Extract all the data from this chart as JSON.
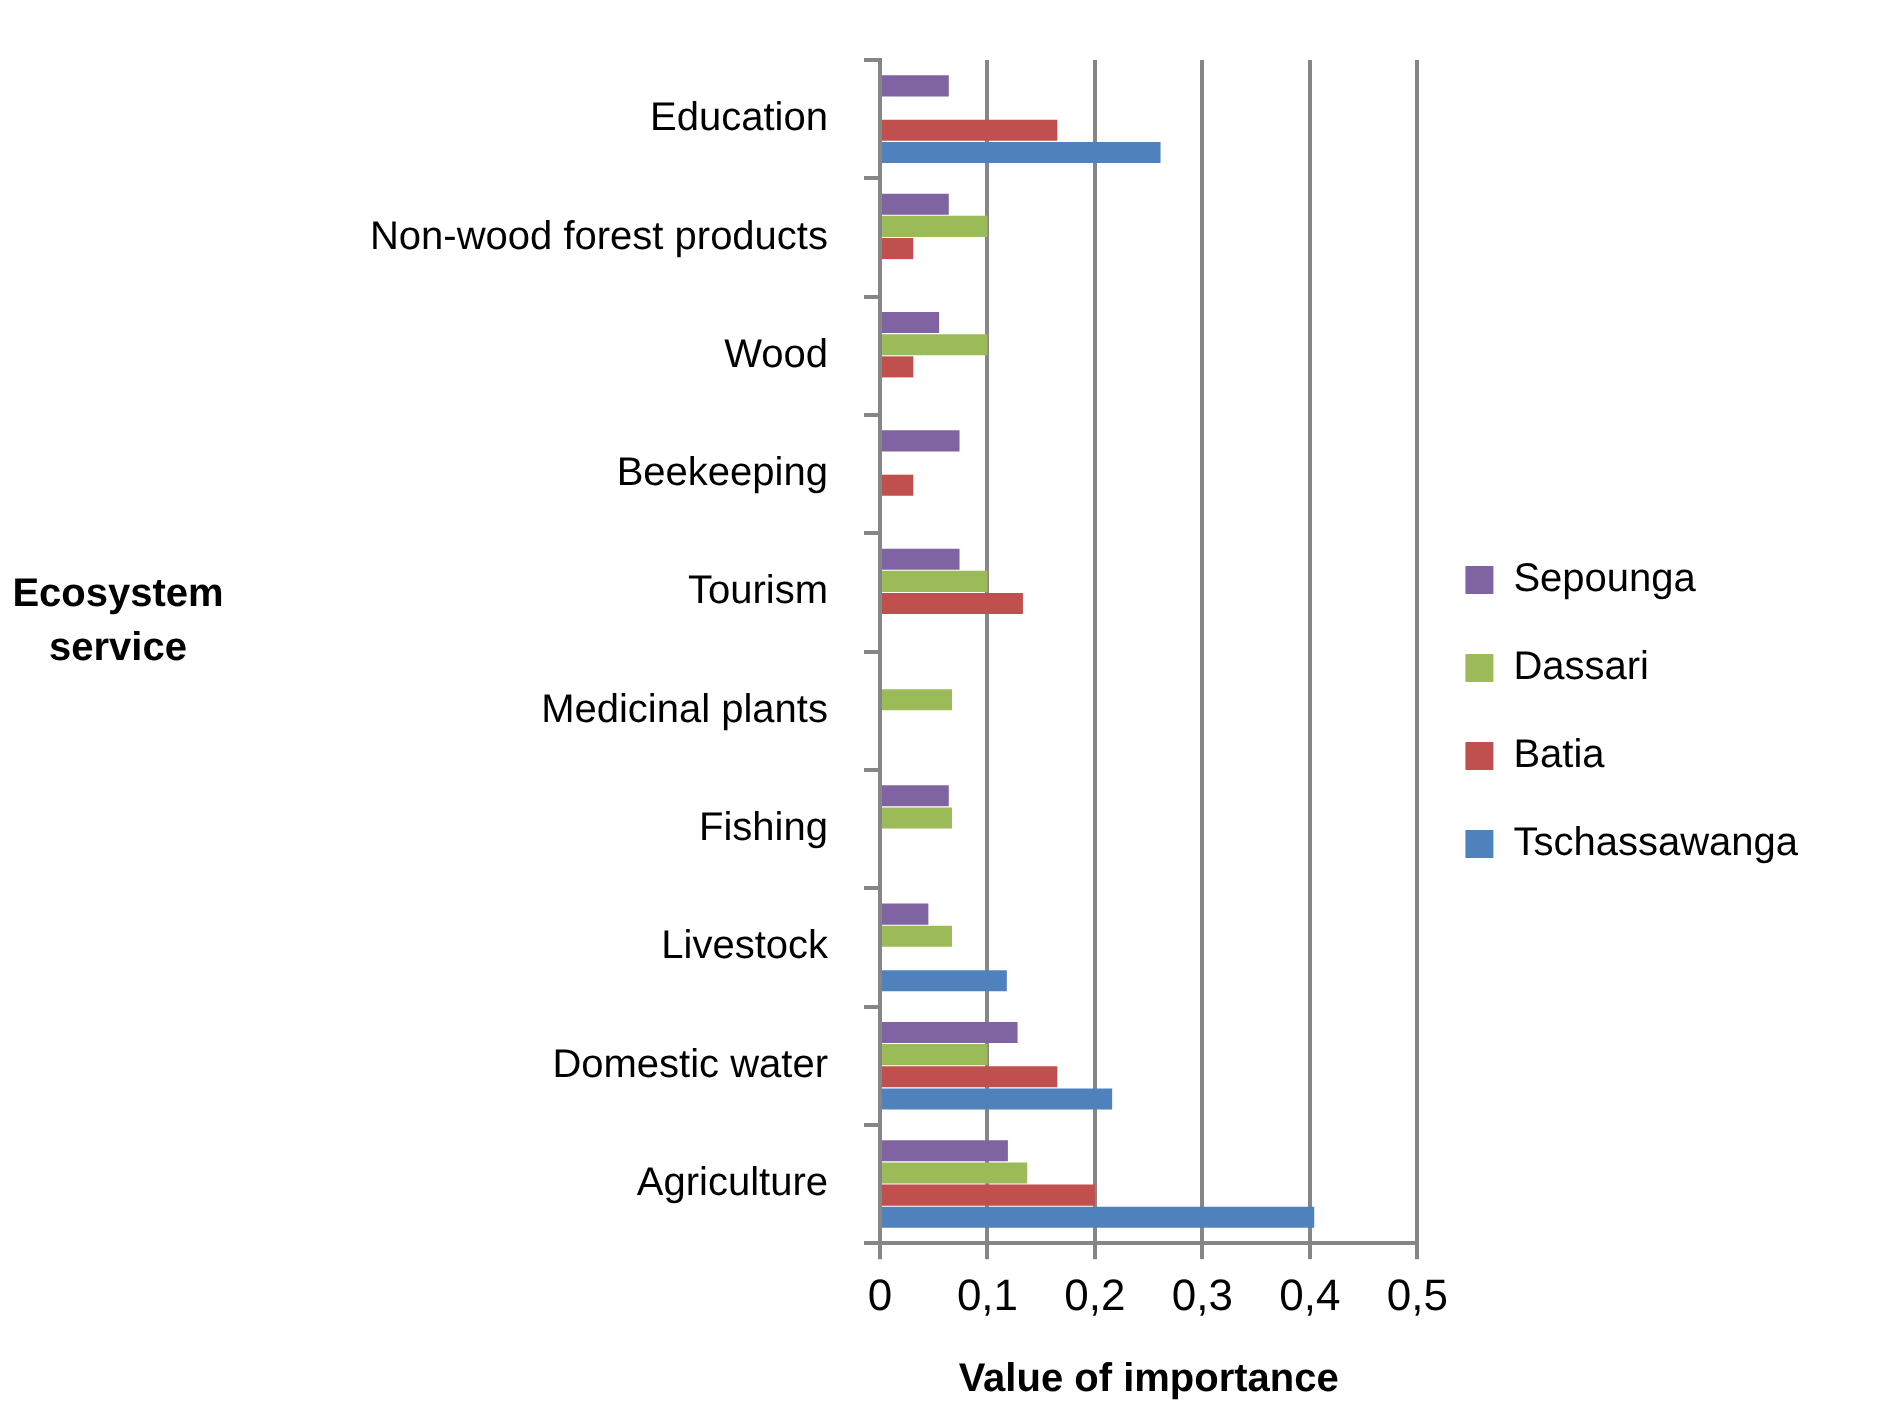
{
  "chart_data": {
    "type": "bar",
    "orientation": "horizontal",
    "xlabel": "Value of importance",
    "ylabel": "Ecosystem service",
    "categories": [
      "Education",
      "Non-wood forest products",
      "Wood",
      "Beekeeping",
      "Tourism",
      "Medicinal plants",
      "Fishing",
      "Livestock",
      "Domestic water",
      "Agriculture"
    ],
    "series": [
      {
        "name": "Sepounga",
        "color": "#8064a2",
        "values": [
          0.064,
          0.064,
          0.055,
          0.074,
          0.074,
          null,
          0.064,
          0.045,
          0.128,
          0.119
        ]
      },
      {
        "name": "Dassari",
        "color": "#9bbb59",
        "values": [
          null,
          0.1,
          0.1,
          null,
          0.1,
          0.067,
          0.067,
          0.067,
          0.1,
          0.137
        ]
      },
      {
        "name": "Batia",
        "color": "#c0504d",
        "values": [
          0.165,
          0.031,
          0.031,
          0.031,
          0.133,
          null,
          null,
          null,
          0.165,
          0.2
        ]
      },
      {
        "name": "Tschassawanga",
        "color": "#4f81bd",
        "values": [
          0.261,
          null,
          null,
          null,
          null,
          null,
          null,
          0.118,
          0.216,
          0.404
        ]
      }
    ],
    "xlim": [
      0,
      0.5
    ],
    "xticks": [
      {
        "value": 0,
        "label": "0"
      },
      {
        "value": 0.1,
        "label": "0,1"
      },
      {
        "value": 0.2,
        "label": "0,2"
      },
      {
        "value": 0.3,
        "label": "0,3"
      },
      {
        "value": 0.4,
        "label": "0,4"
      },
      {
        "value": 0.5,
        "label": "0,5"
      }
    ],
    "grid": "x",
    "legend": "right"
  }
}
